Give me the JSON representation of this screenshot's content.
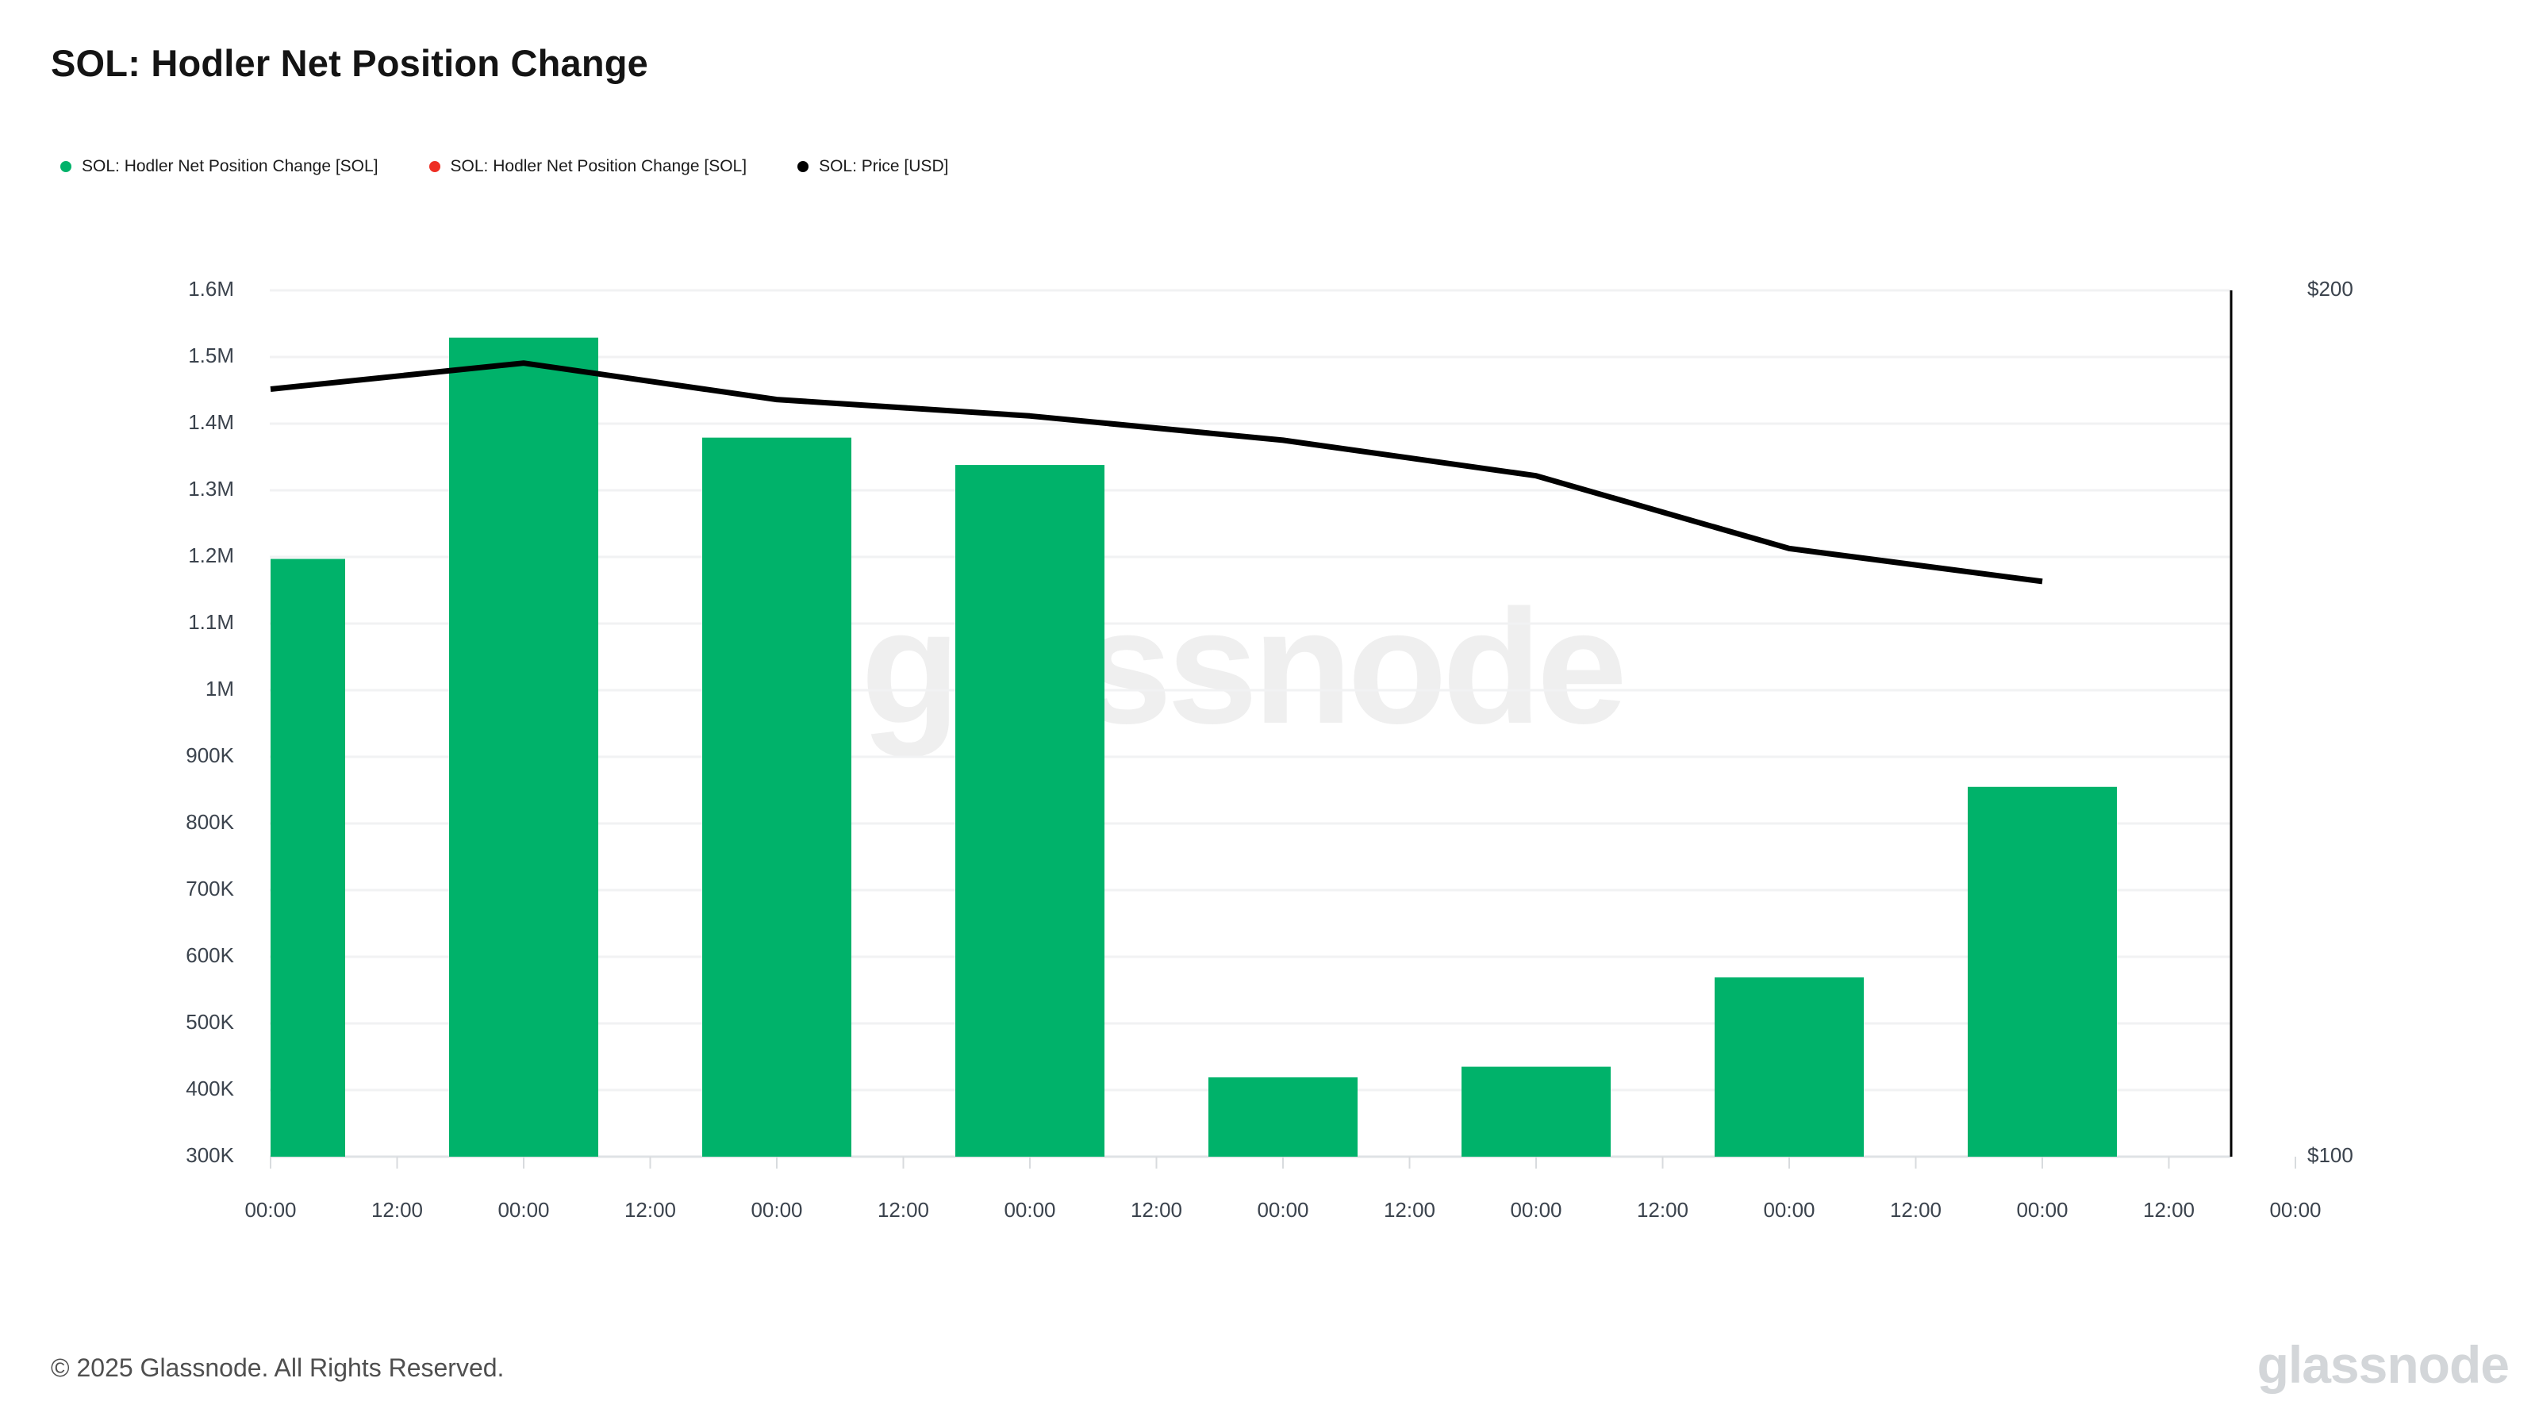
{
  "page": {
    "title": "SOL: Hodler Net Position Change",
    "footer": "© 2025 Glassnode. All Rights Reserved.",
    "watermark_center": "glassnode",
    "watermark_corner": "glassnode"
  },
  "legend": {
    "items": [
      {
        "label": "SOL: Hodler Net Position Change [SOL]",
        "color": "#00b26a"
      },
      {
        "label": "SOL: Hodler Net Position Change [SOL]",
        "color": "#ee2e24"
      },
      {
        "label": "SOL: Price [USD]",
        "color": "#000000"
      }
    ]
  },
  "chart_data": {
    "type": "bar",
    "title": "SOL: Hodler Net Position Change",
    "x_tick_labels": [
      "00:00",
      "12:00",
      "00:00",
      "12:00",
      "00:00",
      "12:00",
      "00:00",
      "12:00",
      "00:00",
      "12:00",
      "00:00",
      "12:00",
      "00:00",
      "12:00",
      "00:00",
      "12:00",
      "00:00"
    ],
    "bar_tick_indices": [
      0,
      2,
      4,
      6,
      8,
      10,
      12,
      14
    ],
    "series": [
      {
        "name": "SOL: Hodler Net Position Change [SOL]",
        "type": "bar",
        "axis": "left",
        "color": "#00b26a",
        "values": [
          1197000,
          1529000,
          1379000,
          1338000,
          419000,
          435000,
          569000,
          855000
        ]
      },
      {
        "name": "SOL: Hodler Net Position Change [SOL]",
        "type": "bar",
        "axis": "left",
        "color": "#ee2e24",
        "values": []
      },
      {
        "name": "SOL: Price [USD]",
        "type": "line",
        "axis": "right",
        "color": "#000000",
        "values": [
          188.6,
          191.6,
          187.4,
          185.5,
          182.7,
          178.6,
          170.2,
          166.4
        ]
      }
    ],
    "left_axis": {
      "min": 300000,
      "max": 1600000,
      "tick_step": 100000,
      "tick_labels": [
        "1.6M",
        "1.5M",
        "1.4M",
        "1.3M",
        "1.2M",
        "1.1M",
        "1M",
        "900K",
        "800K",
        "700K",
        "600K",
        "500K",
        "400K",
        "300K"
      ]
    },
    "right_axis": {
      "min": 100,
      "max": 200,
      "tick_labels": [
        "$200",
        "$100"
      ]
    },
    "grid": true,
    "legend_position": "top-left",
    "colors": {
      "grid_line": "#f1f2f3",
      "baseline": "#dfe2e5",
      "tick_notch": "#d8dbde",
      "axis_text": "#3b434d",
      "right_axis_line": "#000000"
    }
  }
}
